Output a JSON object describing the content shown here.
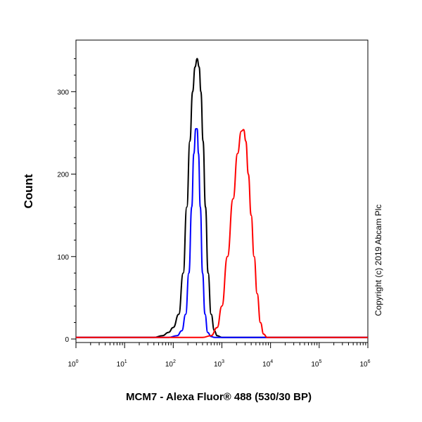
{
  "chart_data": {
    "type": "line",
    "title": "",
    "xlabel": "MCM7 - Alexa Fluor® 488 (530/30 BP)",
    "ylabel": "Count",
    "x_scale": "log",
    "xlim": [
      1,
      1000000
    ],
    "ylim": [
      0,
      360
    ],
    "x_ticks": [
      {
        "base": "10",
        "exp": "0",
        "value": 1
      },
      {
        "base": "10",
        "exp": "1",
        "value": 10
      },
      {
        "base": "10",
        "exp": "2",
        "value": 100
      },
      {
        "base": "10",
        "exp": "3",
        "value": 1000
      },
      {
        "base": "10",
        "exp": "4",
        "value": 10000
      },
      {
        "base": "10",
        "exp": "5",
        "value": 100000
      },
      {
        "base": "10",
        "exp": "6",
        "value": 1000000
      }
    ],
    "y_ticks": [
      {
        "label": "0",
        "value": 0
      },
      {
        "label": "100",
        "value": 100
      },
      {
        "label": "200",
        "value": 200
      },
      {
        "label": "300",
        "value": 300
      }
    ],
    "grid": false,
    "legend": "none",
    "series": [
      {
        "color": "#000000",
        "points": [
          [
            1,
            2
          ],
          [
            40,
            2
          ],
          [
            60,
            4
          ],
          [
            80,
            8
          ],
          [
            100,
            14
          ],
          [
            130,
            30
          ],
          [
            160,
            80
          ],
          [
            190,
            160
          ],
          [
            220,
            240
          ],
          [
            250,
            300
          ],
          [
            280,
            330
          ],
          [
            310,
            340
          ],
          [
            340,
            330
          ],
          [
            370,
            300
          ],
          [
            410,
            240
          ],
          [
            460,
            160
          ],
          [
            520,
            80
          ],
          [
            600,
            30
          ],
          [
            700,
            10
          ],
          [
            800,
            4
          ],
          [
            1000,
            2
          ],
          [
            1000000,
            2
          ]
        ]
      },
      {
        "color": "#0000ff",
        "points": [
          [
            1,
            2
          ],
          [
            80,
            2
          ],
          [
            120,
            4
          ],
          [
            150,
            10
          ],
          [
            180,
            30
          ],
          [
            210,
            80
          ],
          [
            240,
            160
          ],
          [
            265,
            225
          ],
          [
            290,
            255
          ],
          [
            310,
            255
          ],
          [
            330,
            225
          ],
          [
            360,
            160
          ],
          [
            400,
            80
          ],
          [
            450,
            30
          ],
          [
            510,
            8
          ],
          [
            600,
            3
          ],
          [
            700,
            2
          ],
          [
            1000000,
            2
          ]
        ]
      },
      {
        "color": "#ff0000",
        "points": [
          [
            1,
            2
          ],
          [
            100,
            2
          ],
          [
            400,
            2
          ],
          [
            600,
            4
          ],
          [
            800,
            14
          ],
          [
            1000,
            40
          ],
          [
            1300,
            100
          ],
          [
            1700,
            170
          ],
          [
            2100,
            225
          ],
          [
            2500,
            252
          ],
          [
            2800,
            254
          ],
          [
            3100,
            240
          ],
          [
            3500,
            200
          ],
          [
            4000,
            150
          ],
          [
            4600,
            100
          ],
          [
            5300,
            55
          ],
          [
            6200,
            20
          ],
          [
            7200,
            6
          ],
          [
            8500,
            2
          ],
          [
            1000000,
            2
          ]
        ]
      }
    ]
  },
  "copyright": "Copyright (c) 2019 Abcam Plc"
}
